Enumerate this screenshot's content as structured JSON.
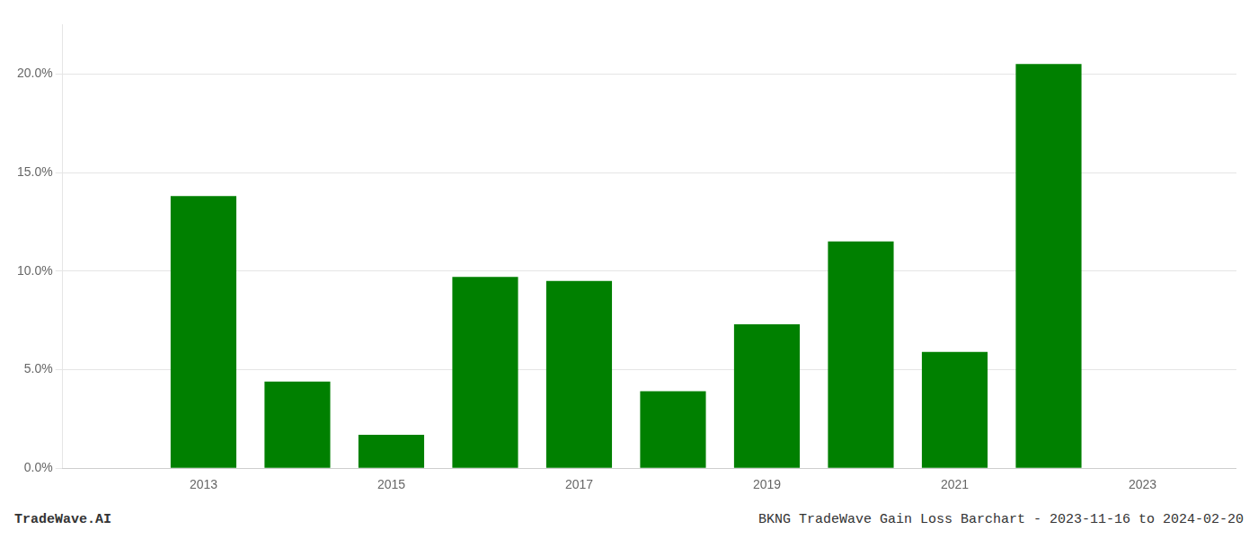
{
  "chart_data": {
    "type": "bar",
    "x": [
      2013,
      2014,
      2015,
      2016,
      2017,
      2018,
      2019,
      2020,
      2021,
      2022
    ],
    "values": [
      0.138,
      0.044,
      0.017,
      0.097,
      0.095,
      0.039,
      0.073,
      0.115,
      0.059,
      0.205
    ],
    "color": "#008000",
    "xlim": [
      2011.5,
      2024.0
    ],
    "xticks": [
      2013,
      2015,
      2017,
      2019,
      2021,
      2023
    ],
    "ylim": [
      0,
      0.225
    ],
    "yticks": [
      {
        "value": 0.0,
        "label": "0.0%"
      },
      {
        "value": 0.05,
        "label": "5.0%"
      },
      {
        "value": 0.1,
        "label": "10.0%"
      },
      {
        "value": 0.15,
        "label": "15.0%"
      },
      {
        "value": 0.2,
        "label": "20.0%"
      }
    ],
    "grid": "y",
    "annotations": [
      "TradeWave.AI",
      "BKNG TradeWave Gain Loss Barchart - 2023-11-16 to 2024-02-20"
    ]
  }
}
